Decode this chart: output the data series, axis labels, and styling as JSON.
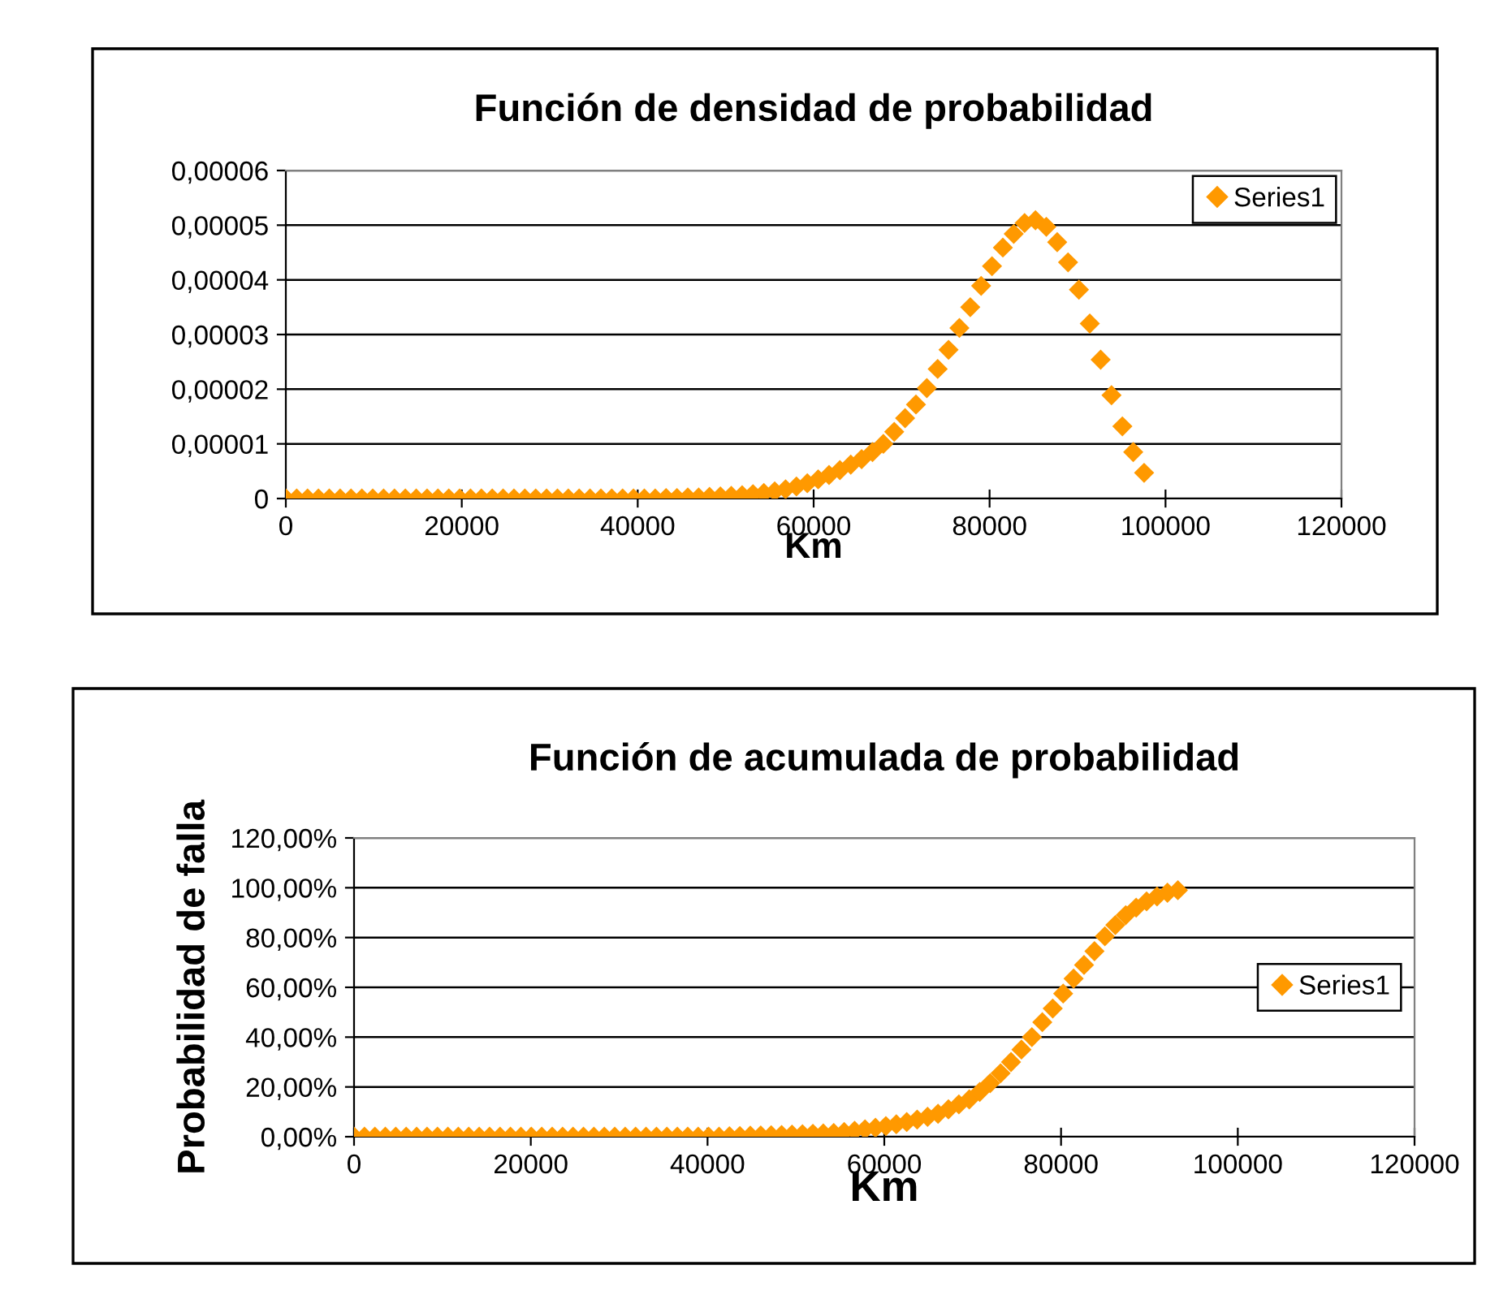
{
  "chart_data": [
    {
      "type": "scatter",
      "title": "Función de densidad de probabilidad",
      "xlabel": "Km",
      "marker": "diamond",
      "grid": "y",
      "legend": "top right",
      "x": [
        0,
        1235,
        2470,
        3705,
        4940,
        6175,
        7410,
        8645,
        9880,
        11115,
        12350,
        13585,
        14820,
        16055,
        17290,
        18525,
        19760,
        20995,
        22230,
        23465,
        24700,
        25935,
        27170,
        28405,
        29640,
        30875,
        32110,
        33345,
        34580,
        35815,
        37050,
        38285,
        39520,
        40755,
        41990,
        43225,
        44460,
        45695,
        46930,
        48165,
        49400,
        50635,
        51870,
        53105,
        54340,
        55575,
        56810,
        58045,
        59280,
        60515,
        61750,
        62985,
        64220,
        65455,
        66690,
        67925,
        69160,
        70395,
        71630,
        72865,
        74100,
        75335,
        76570,
        77805,
        79040,
        80275,
        81510,
        82745,
        83980,
        85215,
        86450,
        87685,
        88920,
        90155,
        91390,
        92625,
        93860,
        95095,
        96330,
        97565
      ],
      "series": [
        {
          "name": "Series1",
          "color": "#ff9900",
          "values": [
            0,
            0,
            0,
            0,
            0,
            0,
            0,
            0,
            0,
            0,
            0,
            0,
            0,
            0,
            0,
            0,
            0,
            0,
            0,
            0,
            0,
            0,
            0,
            0,
            0,
            0,
            0,
            0,
            0,
            0,
            0,
            0,
            0,
            0,
            0,
            1e-07,
            1e-07,
            2e-07,
            2e-07,
            3e-07,
            4e-07,
            5e-07,
            6e-07,
            8e-07,
            1e-06,
            1.3e-06,
            1.7e-06,
            2.2e-06,
            2.8e-06,
            3.5e-06,
            4.3e-06,
            5.2e-06,
            6.2e-06,
            7.2e-06,
            8.5e-06,
            1e-05,
            1.22e-05,
            1.47e-05,
            1.72e-05,
            2.02e-05,
            2.37e-05,
            2.72e-05,
            3.12e-05,
            3.5e-05,
            3.89e-05,
            4.25e-05,
            4.59e-05,
            4.84e-05,
            5.04e-05,
            5.09e-05,
            4.97e-05,
            4.69e-05,
            4.32e-05,
            3.82e-05,
            3.2e-05,
            2.54e-05,
            1.89e-05,
            1.32e-05,
            8.5e-06,
            4.7e-06
          ]
        }
      ],
      "xlim": [
        0,
        120000
      ],
      "xticks": [
        0,
        20000,
        40000,
        60000,
        80000,
        100000,
        120000
      ],
      "ylim": [
        0,
        6e-05
      ],
      "yticks": [
        0,
        {
          "value": 1e-05,
          "label": "0,00001"
        },
        {
          "value": 2e-05,
          "label": "0,00002"
        },
        {
          "value": 3e-05,
          "label": "0,00003"
        },
        {
          "value": 4e-05,
          "label": "0,00004"
        },
        {
          "value": 5e-05,
          "label": "0,00005"
        },
        {
          "value": 6e-05,
          "label": "0,00006"
        }
      ]
    },
    {
      "type": "scatter",
      "title": "Función de acumulada de probabilidad",
      "xlabel": "Km",
      "ylabel": "Probabilidad de falla",
      "marker": "diamond",
      "grid": "y",
      "legend": "right",
      "x": [
        0,
        1180,
        2360,
        3540,
        4720,
        5900,
        7080,
        8260,
        9440,
        10620,
        11800,
        12980,
        14160,
        15340,
        16520,
        17700,
        18880,
        20060,
        21240,
        22420,
        23600,
        24780,
        25960,
        27140,
        28320,
        29500,
        30680,
        31860,
        33040,
        34220,
        35400,
        36580,
        37760,
        38940,
        40120,
        41300,
        42480,
        43660,
        44840,
        46020,
        47200,
        48380,
        49560,
        50740,
        51920,
        53100,
        54280,
        55460,
        56640,
        57820,
        59000,
        60180,
        61360,
        62540,
        63720,
        64900,
        66080,
        67260,
        68440,
        69620,
        70800,
        71980,
        73160,
        74340,
        75520,
        76700,
        77880,
        79060,
        80240,
        81420,
        82600,
        83780,
        84960,
        86140,
        87320,
        88500,
        89680,
        90860,
        92040,
        93220
      ],
      "series": [
        {
          "name": "Series1",
          "color": "#ff9900",
          "values": [
            0,
            0,
            0,
            0,
            0,
            0,
            0,
            0,
            0,
            0,
            0,
            0,
            0,
            0,
            0,
            0,
            0,
            0,
            0,
            0,
            0,
            0,
            0,
            0,
            0,
            0,
            0,
            0,
            0,
            0,
            0,
            0,
            0,
            0,
            0,
            0,
            0.2,
            0.3,
            0.4,
            0.5,
            0.6,
            0.7,
            0.8,
            1.0,
            1.2,
            1.3,
            1.5,
            1.9,
            2.4,
            3.0,
            3.6,
            4.3,
            5.0,
            5.9,
            6.9,
            8.0,
            9.2,
            11,
            13,
            15,
            18,
            21.5,
            25.5,
            30,
            35,
            40,
            46,
            51.5,
            57.5,
            63.5,
            69,
            74.5,
            80.5,
            85,
            89,
            92,
            94.5,
            96.5,
            98,
            99
          ]
        }
      ],
      "xlim": [
        0,
        120000
      ],
      "xticks": [
        0,
        20000,
        40000,
        60000,
        80000,
        100000,
        120000
      ],
      "ylim": [
        0,
        120
      ],
      "yticks": [
        {
          "value": 0,
          "label": "0,00%"
        },
        {
          "value": 20,
          "label": "20,00%"
        },
        {
          "value": 40,
          "label": "40,00%"
        },
        {
          "value": 60,
          "label": "60,00%"
        },
        {
          "value": 80,
          "label": "80,00%"
        },
        {
          "value": 100,
          "label": "100,00%"
        },
        {
          "value": 120,
          "label": "120,00%"
        }
      ]
    }
  ]
}
